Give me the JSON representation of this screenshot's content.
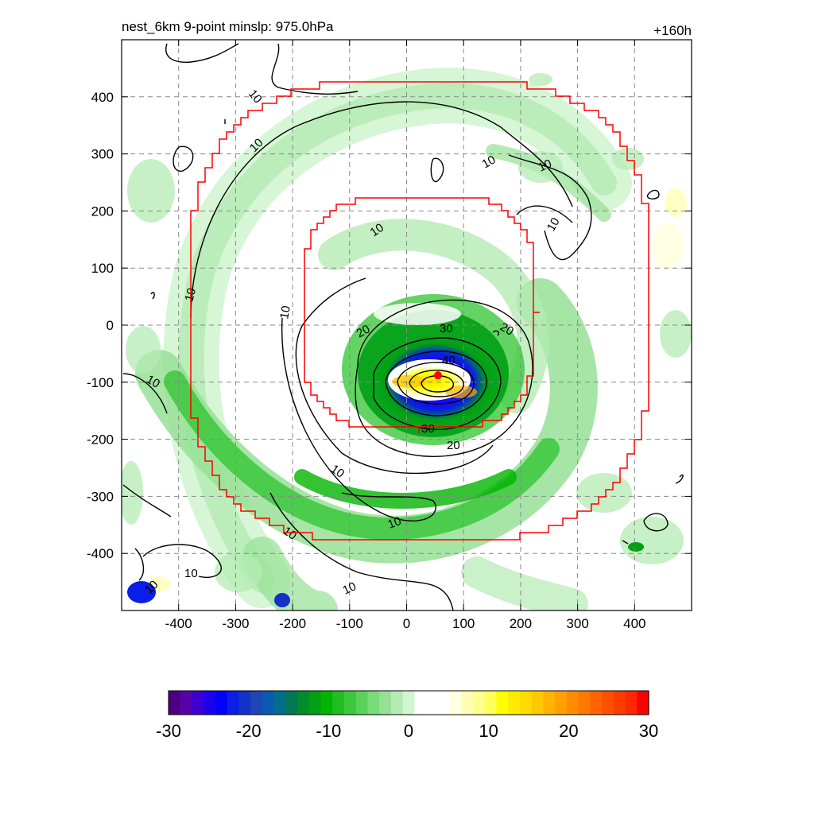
{
  "title_left": "nest_6km  9-point minslp: 975.0hPa",
  "title_right": "+160h",
  "chart_data": {
    "type": "heatmap",
    "xlim": [
      -500,
      500
    ],
    "ylim": [
      -500,
      500
    ],
    "x_ticks": [
      -400,
      -300,
      -200,
      -100,
      0,
      100,
      200,
      300,
      400
    ],
    "y_ticks": [
      400,
      300,
      200,
      100,
      0,
      -100,
      -200,
      -300,
      -400
    ],
    "x_tick_labels": [
      "-400",
      "-300",
      "-200",
      "-100",
      "0",
      "100",
      "200",
      "300",
      "400"
    ],
    "y_tick_labels": [
      "400",
      "300",
      "200",
      "100",
      "0",
      "-100",
      "-200",
      "-300",
      "-400"
    ],
    "grid": true,
    "colorbar": {
      "min": -30,
      "max": 30,
      "tick_values": [
        -30,
        -20,
        -10,
        0,
        10,
        20,
        30
      ],
      "tick_labels": [
        "-30",
        "-20",
        "-10",
        "0",
        "10",
        "20",
        "30"
      ],
      "colors": [
        "#4b0082",
        "#5a00a8",
        "#3c00d2",
        "#1e00f0",
        "#0000ff",
        "#0a1ee6",
        "#1432c8",
        "#1e46b4",
        "#0a5ab4",
        "#006e8c",
        "#007850",
        "#008c28",
        "#00a014",
        "#00b400",
        "#1ebe1e",
        "#3cc83c",
        "#5ad25a",
        "#78dc78",
        "#96e196",
        "#b4ebb4",
        "#d2f5d2",
        "#ffffff",
        "#ffffff",
        "#ffffff",
        "#ffffe1",
        "#ffffb4",
        "#ffff8c",
        "#ffff5a",
        "#ffff00",
        "#ffeb00",
        "#ffdc00",
        "#ffc800",
        "#ffb400",
        "#ffa000",
        "#ff8c00",
        "#ff7800",
        "#ff6400",
        "#ff5000",
        "#ff3c00",
        "#ff2800",
        "#ff0000"
      ]
    },
    "contour_labels": [
      "10",
      "10",
      "10",
      "10",
      "10",
      "10",
      "10",
      "10",
      "10",
      "10",
      "10",
      "10",
      "10",
      "20",
      "20",
      "20",
      "30",
      "30",
      "40"
    ],
    "center_marker": {
      "x": 55,
      "y": -88,
      "color": "#ff0000"
    }
  }
}
